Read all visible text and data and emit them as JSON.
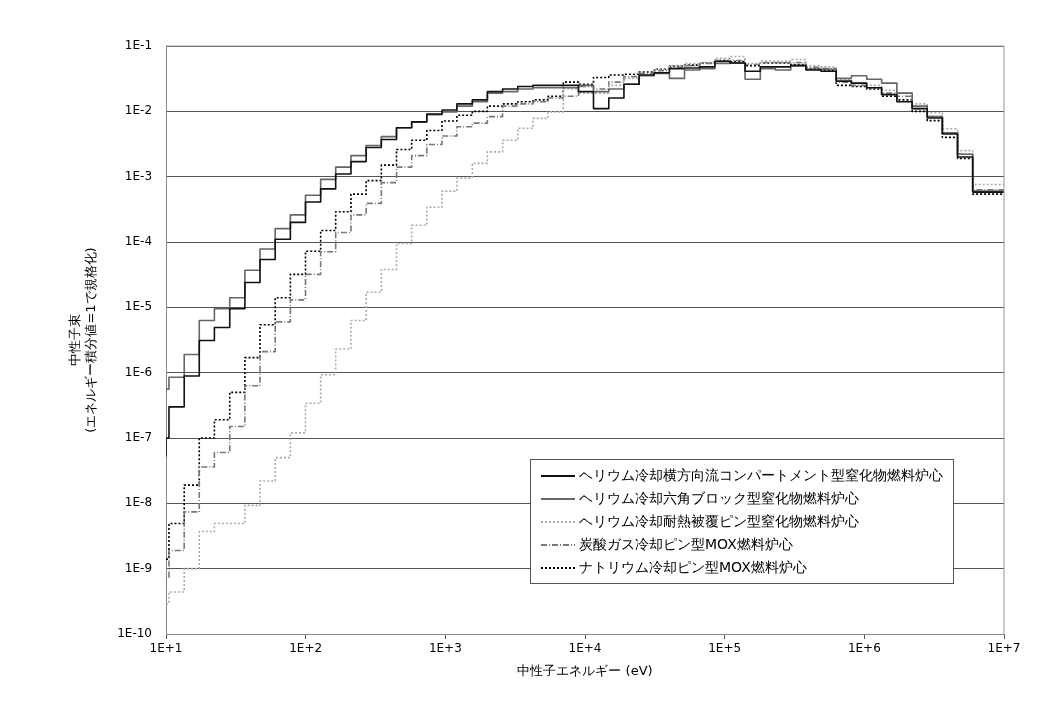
{
  "chart_data": {
    "type": "step",
    "xlabel": "中性子エネルギー (eV)",
    "ylabel": "中性子束\n(エネルギー積分値=1で規格化)",
    "x": [
      10,
      10.5,
      13.5,
      17.3,
      22.2,
      28.6,
      36.7,
      47.1,
      60.5,
      77.7,
      99.7,
      128,
      164,
      211,
      271,
      348,
      447,
      574,
      737,
      946,
      1210,
      1560,
      2000,
      2570,
      3300,
      4240,
      5440,
      6990,
      8980,
      11500,
      14800,
      19000,
      24400,
      31300,
      40200,
      51600,
      66300,
      85100,
      109000,
      140000,
      180000,
      231000,
      297000,
      382000,
      490000,
      629000,
      808000,
      1040000,
      1330000,
      1710000,
      2200000,
      2820000,
      3620000,
      4650000,
      5970000,
      7660000,
      10000000
    ],
    "series": [
      {
        "name": "ヘリウム冷却横方向流コンパートメント型窒化物燃料炉心",
        "color": "#111111",
        "line_style": "solid",
        "values": [
          5.2e-08,
          1e-07,
          3e-07,
          8.9e-07,
          3.1e-06,
          4.9e-06,
          9.5e-06,
          2.4e-05,
          5.4e-05,
          0.00011,
          0.0002,
          0.00041,
          0.00065,
          0.0011,
          0.0017,
          0.0028,
          0.0037,
          0.0056,
          0.0069,
          0.0091,
          0.0105,
          0.013,
          0.015,
          0.02,
          0.022,
          0.024,
          0.025,
          0.025,
          0.025,
          0.02,
          0.011,
          0.016,
          0.026,
          0.036,
          0.039,
          0.045,
          0.046,
          0.048,
          0.058,
          0.055,
          0.041,
          0.048,
          0.048,
          0.05,
          0.043,
          0.041,
          0.029,
          0.027,
          0.023,
          0.018,
          0.014,
          0.011,
          0.0079,
          0.0045,
          0.002,
          0.00058,
          0.00058
        ]
      },
      {
        "name": "ヘリウム冷却六角ブロック型窒化物燃料炉心",
        "color": "#666666",
        "line_style": "solid",
        "values": [
          5e-07,
          5.6e-07,
          8.5e-07,
          1.9e-06,
          6.3e-06,
          9.5e-06,
          1.4e-05,
          3.7e-05,
          7.8e-05,
          0.00016,
          0.00026,
          0.00052,
          0.00091,
          0.0014,
          0.0021,
          0.003,
          0.0041,
          0.0056,
          0.0069,
          0.0089,
          0.0098,
          0.012,
          0.014,
          0.019,
          0.02,
          0.022,
          0.023,
          0.023,
          0.023,
          0.025,
          0.02,
          0.022,
          0.026,
          0.035,
          0.038,
          0.032,
          0.043,
          0.045,
          0.054,
          0.055,
          0.031,
          0.045,
          0.043,
          0.05,
          0.044,
          0.044,
          0.032,
          0.035,
          0.031,
          0.027,
          0.019,
          0.012,
          0.0083,
          0.0047,
          0.0022,
          0.0006,
          0.0006
        ]
      },
      {
        "name": "ヘリウム冷却耐熱被覆ピン型窒化物燃料炉心",
        "color": "#aaaaaa",
        "line_style": "dotted",
        "values": [
          2.9e-10,
          2.9e-10,
          4.4e-10,
          1e-09,
          3.7e-09,
          4.9e-09,
          4.9e-09,
          9.3e-09,
          2.2e-08,
          5e-08,
          1.2e-07,
          3.4e-07,
          9.3e-07,
          2.3e-06,
          6.3e-06,
          1.7e-05,
          3.8e-05,
          9.5e-05,
          0.00018,
          0.00034,
          0.0006,
          0.00095,
          0.0016,
          0.0024,
          0.0036,
          0.0055,
          0.0078,
          0.0098,
          0.022,
          0.019,
          0.019,
          0.025,
          0.032,
          0.036,
          0.044,
          0.05,
          0.054,
          0.056,
          0.065,
          0.069,
          0.054,
          0.059,
          0.059,
          0.062,
          0.05,
          0.048,
          0.031,
          0.027,
          0.025,
          0.021,
          0.019,
          0.013,
          0.0095,
          0.0054,
          0.0025,
          0.00076,
          0.00076
        ]
      },
      {
        "name": "炭酸ガス冷却ピン型MOX燃料炉心",
        "color": "#777777",
        "line_style": "dashed",
        "values": [
          5.5e-10,
          7.4e-10,
          1.9e-09,
          7.4e-09,
          3.6e-08,
          6e-08,
          1.5e-07,
          6.3e-07,
          2.1e-06,
          6e-06,
          1.3e-05,
          3.2e-05,
          7.1e-05,
          0.00014,
          0.00026,
          0.00039,
          0.00081,
          0.0014,
          0.0021,
          0.0031,
          0.0042,
          0.0058,
          0.0066,
          0.0083,
          0.012,
          0.013,
          0.014,
          0.016,
          0.017,
          0.024,
          0.022,
          0.028,
          0.034,
          0.038,
          0.042,
          0.047,
          0.05,
          0.054,
          0.06,
          0.06,
          0.052,
          0.056,
          0.056,
          0.056,
          0.047,
          0.045,
          0.028,
          0.025,
          0.023,
          0.019,
          0.017,
          0.011,
          0.0083,
          0.0047,
          0.0022,
          0.00063,
          0.00063
        ]
      },
      {
        "name": "ナトリウム冷却ピン型MOX燃料炉心",
        "color": "#000000",
        "line_style": "dotted",
        "values": [
          1.4e-09,
          1.4e-09,
          4.9e-09,
          1.9e-08,
          1e-07,
          1.9e-07,
          5e-07,
          1.7e-06,
          5.4e-06,
          1.4e-05,
          3.2e-05,
          7.2e-05,
          0.00015,
          0.00029,
          0.00054,
          0.00087,
          0.0015,
          0.0026,
          0.0036,
          0.0051,
          0.0071,
          0.0087,
          0.01,
          0.012,
          0.013,
          0.014,
          0.015,
          0.017,
          0.028,
          0.026,
          0.033,
          0.036,
          0.037,
          0.04,
          0.044,
          0.049,
          0.051,
          0.055,
          0.06,
          0.058,
          0.05,
          0.055,
          0.055,
          0.052,
          0.045,
          0.042,
          0.025,
          0.024,
          0.022,
          0.017,
          0.015,
          0.01,
          0.0072,
          0.004,
          0.0019,
          0.00054,
          0.00054
        ]
      }
    ],
    "xlim": [
      10,
      10000000
    ],
    "ylim": [
      1e-10,
      0.1
    ],
    "xticks": [
      {
        "value": 10,
        "label": "1E+1"
      },
      {
        "value": 100,
        "label": "1E+2"
      },
      {
        "value": 1000,
        "label": "1E+3"
      },
      {
        "value": 10000,
        "label": "1E+4"
      },
      {
        "value": 100000,
        "label": "1E+5"
      },
      {
        "value": 1000000,
        "label": "1E+6"
      },
      {
        "value": 10000000,
        "label": "1E+7"
      }
    ],
    "yticks": [
      {
        "value": 1e-10,
        "label": "1E-10"
      },
      {
        "value": 1e-09,
        "label": "1E-9"
      },
      {
        "value": 1e-08,
        "label": "1E-8"
      },
      {
        "value": 1e-07,
        "label": "1E-7"
      },
      {
        "value": 1e-06,
        "label": "1E-6"
      },
      {
        "value": 1e-05,
        "label": "1E-5"
      },
      {
        "value": 0.0001,
        "label": "1E-4"
      },
      {
        "value": 0.001,
        "label": "1E-3"
      },
      {
        "value": 0.01,
        "label": "1E-2"
      },
      {
        "value": 0.1,
        "label": "1E-1"
      }
    ],
    "log": "xy",
    "grid": "y",
    "legend": "bottom right"
  }
}
